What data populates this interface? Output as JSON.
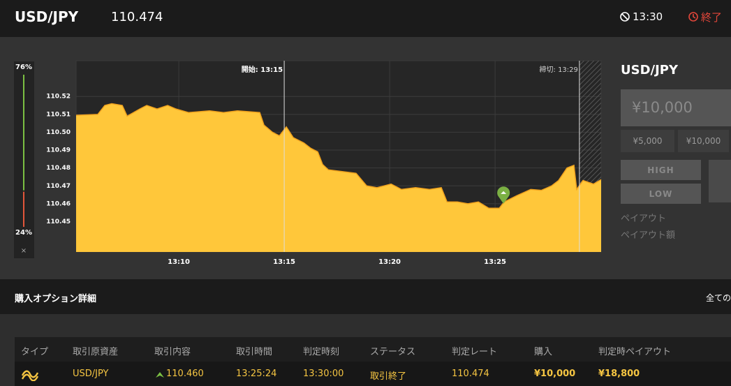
{
  "header": {
    "symbol": "USD/JPY",
    "rate": "110.474",
    "time": "13:30",
    "status": "終了"
  },
  "gauge": {
    "high": 76,
    "low": 24,
    "high_label": "76%",
    "low_label": "24%",
    "close": "×"
  },
  "chart_data": {
    "type": "area",
    "x": [
      5.13,
      6.16,
      6.49,
      6.82,
      7.32,
      7.55,
      8.15,
      8.48,
      8.97,
      9.47,
      9.87,
      10.46,
      11.46,
      12.12,
      12.78,
      13.84,
      14.04,
      14.44,
      14.77,
      15.1,
      15.43,
      15.93,
      16.26,
      16.59,
      16.82,
      17.09,
      17.75,
      18.41,
      18.91,
      19.4,
      20.07,
      20.56,
      21.23,
      21.89,
      22.45,
      22.72,
      23.21,
      23.71,
      24.21,
      24.7,
      25.2,
      25.43,
      26.03,
      26.69,
      27.19,
      27.68,
      28.01,
      28.41,
      28.74,
      28.87,
      29.17,
      29.67,
      30.03
    ],
    "values": [
      110.5095,
      110.51,
      110.515,
      110.516,
      110.515,
      110.509,
      110.513,
      110.515,
      110.513,
      110.515,
      110.513,
      110.511,
      110.512,
      110.511,
      110.512,
      110.511,
      110.504,
      110.5,
      110.498,
      110.503,
      110.497,
      110.494,
      110.491,
      110.489,
      110.482,
      110.479,
      110.478,
      110.477,
      110.47,
      110.469,
      110.471,
      110.468,
      110.469,
      110.468,
      110.469,
      110.461,
      110.461,
      110.46,
      110.461,
      110.4575,
      110.4575,
      110.461,
      110.4645,
      110.468,
      110.4675,
      110.47,
      110.473,
      110.48,
      110.4815,
      110.468,
      110.473,
      110.471,
      110.4735
    ],
    "color": "#ffc73a",
    "line_color": "#f0a21e",
    "xlim": [
      5.13,
      30.03
    ],
    "ylim": [
      110.433,
      110.54
    ],
    "xticks": [
      {
        "value": 10,
        "label": "13:10"
      },
      {
        "value": 15,
        "label": "13:15"
      },
      {
        "value": 20,
        "label": "13:20"
      },
      {
        "value": 25,
        "label": "13:25"
      }
    ],
    "yticks": [
      110.45,
      110.46,
      110.47,
      110.48,
      110.49,
      {
        "value": 110.5,
        "label": "110.50"
      },
      110.51,
      110.52
    ],
    "grid": true,
    "annotations": [
      {
        "x": 15,
        "label": "開始: 13:15"
      },
      {
        "x": 29,
        "label": "締切: 13:29"
      }
    ],
    "entry": {
      "x": 25.4,
      "value": 110.46
    }
  },
  "panel": {
    "symbol": "USD/JPY",
    "amount": "¥10,000",
    "presets": [
      "¥5,000",
      "¥10,000"
    ],
    "high": "HIGH",
    "low": "LOW",
    "payout": "ペイアウト",
    "payout_amount": "ペイアウト額"
  },
  "details": {
    "title": "購入オプション詳細",
    "filter": "全ての",
    "table": {
      "columns": [
        "タイプ",
        "取引原資産",
        "取引内容",
        "取引時間",
        "判定時刻",
        "ステータス",
        "判定レート",
        "購入",
        "判定時ペイアウト"
      ],
      "rows": [
        [
          "USD/JPY",
          "110.460",
          "13:25:24",
          "13:30:00",
          "取引終了",
          "110.474",
          "¥10,000",
          "¥18,800"
        ]
      ]
    }
  }
}
